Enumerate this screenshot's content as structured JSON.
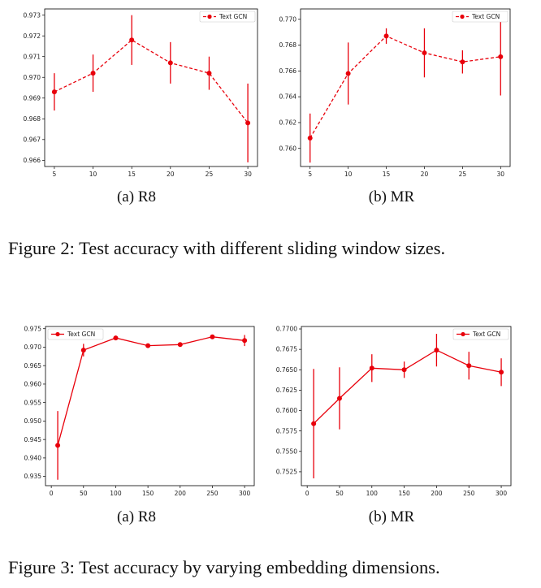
{
  "figures": [
    {
      "caption": "Figure 2: Test accuracy with different sliding window sizes.",
      "subcaptions": [
        "(a) R8",
        "(b) MR"
      ]
    },
    {
      "caption": "Figure 3: Test accuracy by varying embedding dimensions.",
      "subcaptions": [
        "(a) R8",
        "(b) MR"
      ]
    }
  ],
  "chart_data": [
    {
      "type": "line",
      "line_style": "dashed",
      "color": "#e8000b",
      "x": [
        5,
        10,
        15,
        20,
        25,
        30
      ],
      "series": [
        {
          "name": "Text GCN",
          "values": [
            0.9693,
            0.9702,
            0.9718,
            0.9707,
            0.9702,
            0.9678
          ],
          "error": [
            0.0009,
            0.0009,
            0.0012,
            0.001,
            0.0008,
            0.0019
          ]
        }
      ],
      "xticks": [
        "5",
        "10",
        "15",
        "20",
        "25",
        "30"
      ],
      "yticks": [
        "0.966",
        "0.967",
        "0.968",
        "0.969",
        "0.970",
        "0.971",
        "0.972",
        "0.973"
      ],
      "xlim": [
        3.75,
        31.25
      ],
      "ylim": [
        0.9657,
        0.9733
      ],
      "legend": "top-right",
      "title": "",
      "xlabel": "",
      "ylabel": ""
    },
    {
      "type": "line",
      "line_style": "dashed",
      "color": "#e8000b",
      "x": [
        5,
        10,
        15,
        20,
        25,
        30
      ],
      "series": [
        {
          "name": "Text GCN",
          "values": [
            0.7608,
            0.7658,
            0.7687,
            0.7674,
            0.7667,
            0.7671
          ],
          "error": [
            0.0019,
            0.0024,
            0.0006,
            0.0019,
            0.0009,
            0.003
          ]
        }
      ],
      "xticks": [
        "5",
        "10",
        "15",
        "20",
        "25",
        "30"
      ],
      "yticks": [
        "0.760",
        "0.762",
        "0.764",
        "0.766",
        "0.768",
        "0.770"
      ],
      "xlim": [
        3.75,
        31.25
      ],
      "ylim": [
        0.7586,
        0.7708
      ],
      "legend": "top-right",
      "title": "",
      "xlabel": "",
      "ylabel": ""
    },
    {
      "type": "line",
      "line_style": "solid",
      "color": "#e8000b",
      "x": [
        10,
        50,
        100,
        150,
        200,
        250,
        300
      ],
      "series": [
        {
          "name": "Text GCN",
          "values": [
            0.9434,
            0.9692,
            0.9725,
            0.9704,
            0.9707,
            0.9728,
            0.9718
          ],
          "error": [
            0.0093,
            0.0017,
            0.0006,
            0.0003,
            0.0005,
            0.0005,
            0.0015
          ]
        }
      ],
      "xticks": [
        "0",
        "50",
        "100",
        "150",
        "200",
        "250",
        "300"
      ],
      "yticks": [
        "0.935",
        "0.940",
        "0.945",
        "0.950",
        "0.955",
        "0.960",
        "0.965",
        "0.970",
        "0.975"
      ],
      "xlim": [
        -9,
        315
      ],
      "ylim": [
        0.9325,
        0.9756
      ],
      "legend": "top-left",
      "title": "",
      "xlabel": "",
      "ylabel": ""
    },
    {
      "type": "line",
      "line_style": "solid",
      "color": "#e8000b",
      "x": [
        10,
        50,
        100,
        150,
        200,
        250,
        300
      ],
      "series": [
        {
          "name": "Text GCN",
          "values": [
            0.7584,
            0.7615,
            0.7652,
            0.765,
            0.7674,
            0.7655,
            0.7647
          ],
          "error": [
            0.0067,
            0.0038,
            0.0017,
            0.001,
            0.002,
            0.0017,
            0.0017
          ]
        }
      ],
      "xticks": [
        "0",
        "50",
        "100",
        "150",
        "200",
        "250",
        "300"
      ],
      "yticks": [
        "0.7525",
        "0.7550",
        "0.7575",
        "0.7600",
        "0.7625",
        "0.7650",
        "0.7675",
        "0.7700"
      ],
      "xlim": [
        -9,
        315
      ],
      "ylim": [
        0.7508,
        0.7703
      ],
      "legend": "top-right",
      "title": "",
      "xlabel": "",
      "ylabel": ""
    }
  ]
}
